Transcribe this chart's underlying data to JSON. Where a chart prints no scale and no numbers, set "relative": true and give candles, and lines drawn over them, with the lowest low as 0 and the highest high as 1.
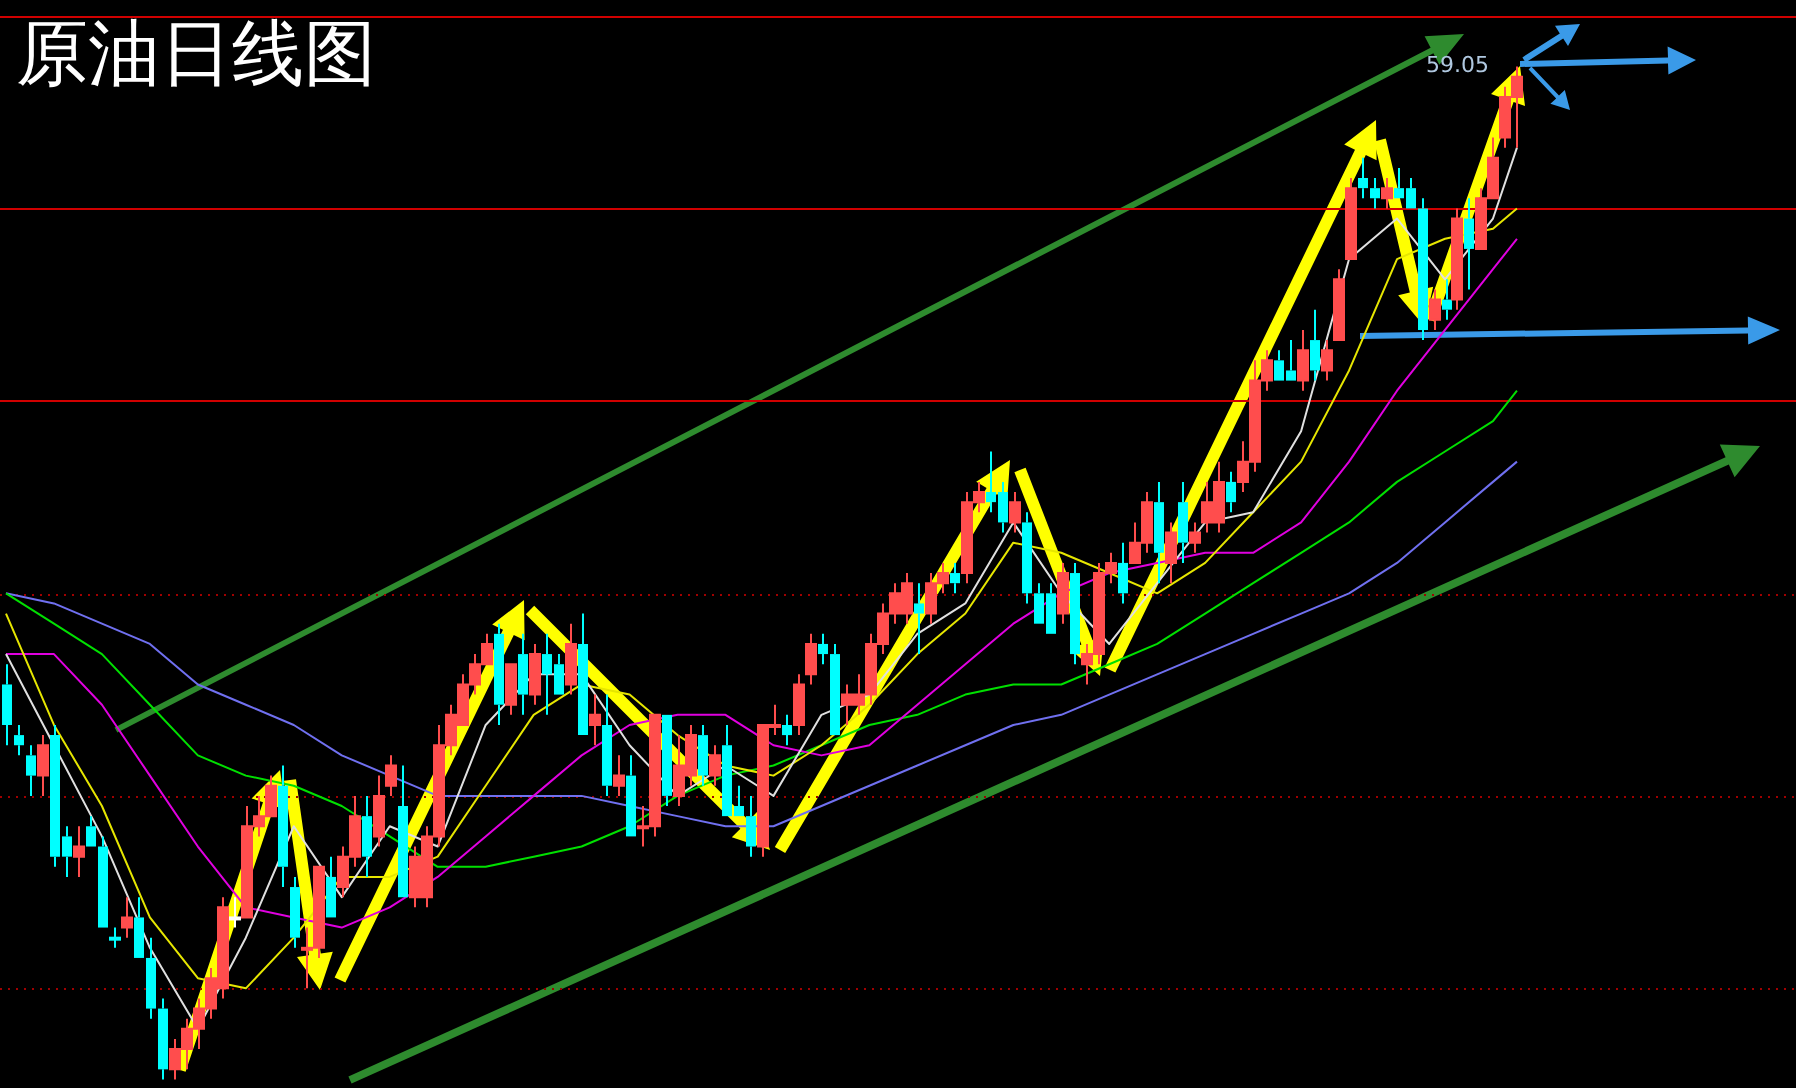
{
  "chart_data": {
    "type": "candlestick",
    "title": "原油日线图",
    "relative": true,
    "tick_labels": false,
    "categories": [
      null,
      null,
      null,
      null,
      null,
      null,
      null,
      null,
      null,
      null,
      null,
      null,
      null,
      null,
      null,
      null,
      null,
      null,
      null,
      null,
      null,
      null,
      null,
      null,
      null,
      null,
      null,
      null,
      null,
      null,
      null,
      null,
      null,
      null,
      null,
      null,
      null,
      null,
      null,
      null,
      null,
      null,
      null,
      null,
      null,
      null,
      null,
      null,
      null,
      null,
      null,
      null,
      null,
      null,
      null,
      null,
      null,
      null,
      null,
      null,
      null,
      null,
      null,
      null,
      null,
      null,
      null,
      null,
      null,
      null,
      null,
      null,
      null,
      null,
      null,
      null,
      null,
      null,
      null,
      null,
      null,
      null,
      null,
      null,
      null,
      null,
      null,
      null,
      null,
      null,
      null,
      null,
      null,
      null,
      null,
      null,
      null,
      null,
      null,
      null,
      null,
      null,
      null,
      null,
      null,
      null,
      null,
      null,
      null,
      null,
      null,
      null,
      null,
      null,
      null,
      null,
      null,
      null,
      null,
      null,
      null,
      null,
      null,
      null,
      null,
      null,
      null
    ],
    "ohlc": [
      [
        0.39,
        0.41,
        0.33,
        0.35
      ],
      [
        0.34,
        0.35,
        0.32,
        0.33
      ],
      [
        0.32,
        0.33,
        0.28,
        0.3
      ],
      [
        0.3,
        0.34,
        0.28,
        0.33
      ],
      [
        0.34,
        0.35,
        0.21,
        0.22
      ],
      [
        0.24,
        0.25,
        0.2,
        0.22
      ],
      [
        0.22,
        0.25,
        0.2,
        0.23
      ],
      [
        0.25,
        0.26,
        0.23,
        0.23
      ],
      [
        0.23,
        0.24,
        0.15,
        0.15
      ],
      [
        0.14,
        0.15,
        0.13,
        0.14
      ],
      [
        0.15,
        0.18,
        0.14,
        0.16
      ],
      [
        0.16,
        0.18,
        0.12,
        0.12
      ],
      [
        0.12,
        0.14,
        0.06,
        0.07
      ],
      [
        0.07,
        0.08,
        0,
        0.01
      ],
      [
        0.01,
        0.04,
        0,
        0.03
      ],
      [
        0.03,
        0.06,
        0.01,
        0.05
      ],
      [
        0.05,
        0.08,
        0.03,
        0.07
      ],
      [
        0.07,
        0.11,
        0.06,
        0.1
      ],
      [
        0.09,
        0.18,
        0.08,
        0.17
      ],
      [
        0.16,
        0.18,
        0.15,
        0.16
      ],
      [
        0.16,
        0.27,
        0.16,
        0.25
      ],
      [
        0.25,
        0.28,
        0.24,
        0.26
      ],
      [
        0.26,
        0.3,
        0.26,
        0.29
      ],
      [
        0.29,
        0.31,
        0.19,
        0.21
      ],
      [
        0.19,
        0.2,
        0.13,
        0.14
      ],
      [
        0.13,
        0.15,
        0.09,
        0.13
      ],
      [
        0.13,
        0.21,
        0.12,
        0.21
      ],
      [
        0.2,
        0.22,
        0.16,
        0.16
      ],
      [
        0.19,
        0.23,
        0.18,
        0.22
      ],
      [
        0.22,
        0.28,
        0.21,
        0.26
      ],
      [
        0.26,
        0.28,
        0.2,
        0.22
      ],
      [
        0.24,
        0.3,
        0.23,
        0.28
      ],
      [
        0.29,
        0.32,
        0.28,
        0.31
      ],
      [
        0.27,
        0.31,
        0.18,
        0.18
      ],
      [
        0.18,
        0.23,
        0.17,
        0.22
      ],
      [
        0.18,
        0.25,
        0.17,
        0.24
      ],
      [
        0.24,
        0.35,
        0.23,
        0.33
      ],
      [
        0.33,
        0.37,
        0.32,
        0.36
      ],
      [
        0.35,
        0.4,
        0.35,
        0.39
      ],
      [
        0.39,
        0.42,
        0.38,
        0.41
      ],
      [
        0.41,
        0.44,
        0.41,
        0.43
      ],
      [
        0.44,
        0.45,
        0.35,
        0.37
      ],
      [
        0.37,
        0.41,
        0.36,
        0.41
      ],
      [
        0.42,
        0.44,
        0.36,
        0.38
      ],
      [
        0.38,
        0.43,
        0.37,
        0.42
      ],
      [
        0.42,
        0.44,
        0.36,
        0.4
      ],
      [
        0.41,
        0.42,
        0.38,
        0.38
      ],
      [
        0.39,
        0.45,
        0.38,
        0.43
      ],
      [
        0.43,
        0.46,
        0.34,
        0.34
      ],
      [
        0.35,
        0.38,
        0.33,
        0.36
      ],
      [
        0.35,
        0.38,
        0.28,
        0.29
      ],
      [
        0.29,
        0.32,
        0.28,
        0.3
      ],
      [
        0.3,
        0.32,
        0.24,
        0.24
      ],
      [
        0.25,
        0.27,
        0.23,
        0.25
      ],
      [
        0.25,
        0.36,
        0.24,
        0.36
      ],
      [
        0.36,
        0.36,
        0.27,
        0.28
      ],
      [
        0.28,
        0.34,
        0.27,
        0.31
      ],
      [
        0.3,
        0.35,
        0.29,
        0.34
      ],
      [
        0.34,
        0.35,
        0.29,
        0.3
      ],
      [
        0.3,
        0.33,
        0.29,
        0.32
      ],
      [
        0.33,
        0.35,
        0.26,
        0.26
      ],
      [
        0.27,
        0.29,
        0.26,
        0.26
      ],
      [
        0.26,
        0.28,
        0.22,
        0.23
      ],
      [
        0.23,
        0.35,
        0.22,
        0.35
      ],
      [
        0.35,
        0.37,
        0.34,
        0.35
      ],
      [
        0.35,
        0.36,
        0.33,
        0.34
      ],
      [
        0.35,
        0.4,
        0.34,
        0.39
      ],
      [
        0.4,
        0.44,
        0.39,
        0.43
      ],
      [
        0.43,
        0.44,
        0.41,
        0.42
      ],
      [
        0.42,
        0.43,
        0.34,
        0.34
      ],
      [
        0.37,
        0.39,
        0.35,
        0.38
      ],
      [
        0.37,
        0.4,
        0.36,
        0.38
      ],
      [
        0.38,
        0.44,
        0.37,
        0.43
      ],
      [
        0.43,
        0.47,
        0.42,
        0.46
      ],
      [
        0.46,
        0.49,
        0.45,
        0.48
      ],
      [
        0.46,
        0.5,
        0.45,
        0.49
      ],
      [
        0.47,
        0.49,
        0.42,
        0.46
      ],
      [
        0.46,
        0.5,
        0.45,
        0.49
      ],
      [
        0.49,
        0.51,
        0.48,
        0.5
      ],
      [
        0.5,
        0.51,
        0.48,
        0.49
      ],
      [
        0.5,
        0.58,
        0.49,
        0.57
      ],
      [
        0.57,
        0.59,
        0.56,
        0.58
      ],
      [
        0.58,
        0.62,
        0.56,
        0.57
      ],
      [
        0.58,
        0.59,
        0.54,
        0.55
      ],
      [
        0.55,
        0.58,
        0.54,
        0.57
      ],
      [
        0.55,
        0.56,
        0.47,
        0.48
      ],
      [
        0.48,
        0.49,
        0.45,
        0.45
      ],
      [
        0.48,
        0.49,
        0.44,
        0.44
      ],
      [
        0.46,
        0.51,
        0.45,
        0.5
      ],
      [
        0.5,
        0.51,
        0.41,
        0.42
      ],
      [
        0.41,
        0.43,
        0.39,
        0.42
      ],
      [
        0.42,
        0.51,
        0.41,
        0.5
      ],
      [
        0.5,
        0.52,
        0.49,
        0.51
      ],
      [
        0.51,
        0.53,
        0.47,
        0.48
      ],
      [
        0.51,
        0.55,
        0.51,
        0.53
      ],
      [
        0.53,
        0.58,
        0.52,
        0.57
      ],
      [
        0.57,
        0.59,
        0.49,
        0.52
      ],
      [
        0.51,
        0.55,
        0.49,
        0.54
      ],
      [
        0.57,
        0.59,
        0.51,
        0.53
      ],
      [
        0.53,
        0.55,
        0.52,
        0.54
      ],
      [
        0.55,
        0.59,
        0.54,
        0.57
      ],
      [
        0.55,
        0.61,
        0.54,
        0.59
      ],
      [
        0.59,
        0.6,
        0.56,
        0.57
      ],
      [
        0.59,
        0.63,
        0.58,
        0.61
      ],
      [
        0.61,
        0.71,
        0.6,
        0.69
      ],
      [
        0.69,
        0.72,
        0.68,
        0.71
      ],
      [
        0.71,
        0.72,
        0.69,
        0.69
      ],
      [
        0.7,
        0.73,
        0.69,
        0.69
      ],
      [
        0.69,
        0.74,
        0.68,
        0.72
      ],
      [
        0.73,
        0.76,
        0.69,
        0.7
      ],
      [
        0.7,
        0.73,
        0.69,
        0.72
      ],
      [
        0.73,
        0.8,
        0.73,
        0.79
      ],
      [
        0.81,
        0.89,
        0.81,
        0.88
      ],
      [
        0.89,
        0.91,
        0.87,
        0.88
      ],
      [
        0.88,
        0.89,
        0.86,
        0.87
      ],
      [
        0.87,
        0.89,
        0.86,
        0.88
      ],
      [
        0.88,
        0.9,
        0.87,
        0.87
      ],
      [
        0.88,
        0.89,
        0.86,
        0.86
      ],
      [
        0.86,
        0.87,
        0.73,
        0.74
      ],
      [
        0.75,
        0.78,
        0.74,
        0.77
      ],
      [
        0.77,
        0.79,
        0.75,
        0.76
      ],
      [
        0.77,
        0.86,
        0.76,
        0.85
      ],
      [
        0.85,
        0.87,
        0.78,
        0.82
      ],
      [
        0.82,
        0.88,
        0.82,
        0.87
      ],
      [
        0.87,
        0.93,
        0.87,
        0.91
      ],
      [
        0.93,
        0.98,
        0.92,
        0.97
      ],
      [
        0.97,
        1,
        0.92,
        0.99
      ]
    ],
    "colors": [
      "#00ffff",
      "#00ffff",
      "#00ffff",
      "#ff4d4d",
      "#00ffff",
      "#00ffff",
      "#ff4d4d",
      "#00ffff",
      "#00ffff",
      "#00ffff",
      "#ff4d4d",
      "#00ffff",
      "#00ffff",
      "#00ffff",
      "#ff4d4d",
      "#ff4d4d",
      "#ff4d4d",
      "#ff4d4d",
      "#ff4d4d",
      "#ffffff",
      "#ff4d4d",
      "#ff4d4d",
      "#ff4d4d",
      "#00ffff",
      "#00ffff",
      "#ff4d4d",
      "#ff4d4d",
      "#00ffff",
      "#ff4d4d",
      "#ff4d4d",
      "#00ffff",
      "#ff4d4d",
      "#ff4d4d",
      "#00ffff",
      "#ff4d4d",
      "#ff4d4d",
      "#ff4d4d",
      "#ff4d4d",
      "#ff4d4d",
      "#ff4d4d",
      "#ff4d4d",
      "#00ffff",
      "#ff4d4d",
      "#00ffff",
      "#ff4d4d",
      "#00ffff",
      "#00ffff",
      "#ff4d4d",
      "#00ffff",
      "#ff4d4d",
      "#00ffff",
      "#ff4d4d",
      "#00ffff",
      "#ff4d4d",
      "#ff4d4d",
      "#00ffff",
      "#ff4d4d",
      "#ff4d4d",
      "#00ffff",
      "#ff4d4d",
      "#00ffff",
      "#00ffff",
      "#00ffff",
      "#ff4d4d",
      "#ff4d4d",
      "#00ffff",
      "#ff4d4d",
      "#ff4d4d",
      "#00ffff",
      "#00ffff",
      "#ff4d4d",
      "#ff4d4d",
      "#ff4d4d",
      "#ff4d4d",
      "#ff4d4d",
      "#ff4d4d",
      "#00ffff",
      "#ff4d4d",
      "#ff4d4d",
      "#00ffff",
      "#ff4d4d",
      "#ff4d4d",
      "#00ffff",
      "#00ffff",
      "#ff4d4d",
      "#00ffff",
      "#00ffff",
      "#00ffff",
      "#ff4d4d",
      "#00ffff",
      "#ff4d4d",
      "#ff4d4d",
      "#ff4d4d",
      "#00ffff",
      "#ff4d4d",
      "#ff4d4d",
      "#00ffff",
      "#ff4d4d",
      "#00ffff",
      "#ff4d4d",
      "#ff4d4d",
      "#ff4d4d",
      "#00ffff",
      "#ff4d4d",
      "#ff4d4d",
      "#ff4d4d",
      "#00ffff",
      "#00ffff",
      "#ff4d4d",
      "#00ffff",
      "#ff4d4d",
      "#ff4d4d",
      "#ff4d4d",
      "#00ffff",
      "#00ffff",
      "#ff4d4d",
      "#00ffff",
      "#00ffff",
      "#00ffff",
      "#ff4d4d",
      "#00ffff",
      "#ff4d4d",
      "#00ffff",
      "#ff4d4d",
      "#ff4d4d",
      "#ff4d4d",
      "#ff4d4d"
    ],
    "series": [
      {
        "type": "line",
        "color": "#e0e0e0",
        "values": [
          0.42,
          null,
          null,
          null,
          0.33,
          null,
          null,
          null,
          0.24,
          null,
          null,
          null,
          0.13,
          null,
          null,
          null,
          0.05,
          null,
          null,
          null,
          0.14,
          null,
          null,
          null,
          0.25,
          null,
          null,
          null,
          0.18,
          null,
          null,
          null,
          0.25,
          null,
          null,
          null,
          0.23,
          null,
          null,
          null,
          0.35,
          null,
          null,
          null,
          0.4,
          null,
          null,
          null,
          0.4,
          null,
          null,
          null,
          0.33,
          null,
          null,
          null,
          0.28,
          null,
          null,
          null,
          0.31,
          null,
          null,
          null,
          0.28,
          null,
          null,
          null,
          0.36,
          null,
          null,
          null,
          0.38,
          null,
          null,
          null,
          0.44,
          null,
          null,
          null,
          0.47,
          null,
          null,
          null,
          0.55,
          null,
          null,
          null,
          0.48,
          null,
          null,
          null,
          0.43,
          null,
          null,
          null,
          0.49,
          null,
          null,
          null,
          0.55,
          null,
          null,
          null,
          0.56,
          null,
          null,
          null,
          0.64,
          null,
          null,
          null,
          0.81,
          null,
          null,
          null,
          0.85,
          null,
          null,
          null,
          0.79,
          null,
          null,
          null,
          0.85,
          null,
          0.92
        ]
      },
      {
        "type": "line",
        "color": "#e6e600",
        "values": [
          0.46,
          null,
          null,
          null,
          0.35,
          null,
          null,
          null,
          0.27,
          null,
          null,
          null,
          0.16,
          null,
          null,
          null,
          0.1,
          null,
          null,
          null,
          0.09,
          null,
          null,
          null,
          0.14,
          null,
          null,
          null,
          0.2,
          null,
          null,
          null,
          0.2,
          null,
          null,
          null,
          0.22,
          null,
          null,
          null,
          0.29,
          null,
          null,
          null,
          0.36,
          null,
          null,
          null,
          0.39,
          null,
          null,
          null,
          0.38,
          null,
          null,
          null,
          0.34,
          null,
          null,
          null,
          0.31,
          null,
          null,
          null,
          0.3,
          null,
          null,
          null,
          0.33,
          null,
          null,
          null,
          0.37,
          null,
          null,
          null,
          0.42,
          null,
          null,
          null,
          0.46,
          null,
          null,
          null,
          0.53,
          null,
          null,
          null,
          0.52,
          null,
          null,
          null,
          0.5,
          null,
          null,
          null,
          0.48,
          null,
          null,
          null,
          0.51,
          null,
          null,
          null,
          0.56,
          null,
          null,
          null,
          0.61,
          null,
          null,
          null,
          0.7,
          null,
          null,
          null,
          0.81,
          null,
          null,
          null,
          0.83,
          null,
          null,
          null,
          0.84,
          null,
          0.86
        ]
      },
      {
        "type": "line",
        "color": "#e000e0",
        "values": [
          0.42,
          null,
          null,
          null,
          0.42,
          null,
          null,
          null,
          0.37,
          null,
          null,
          null,
          0.3,
          null,
          null,
          null,
          0.23,
          null,
          null,
          null,
          0.17,
          null,
          null,
          null,
          0.16,
          null,
          null,
          null,
          0.15,
          null,
          null,
          null,
          0.17,
          null,
          null,
          null,
          0.2,
          null,
          null,
          null,
          0.24,
          null,
          null,
          null,
          0.28,
          null,
          null,
          null,
          0.32,
          null,
          null,
          null,
          0.35,
          null,
          null,
          null,
          0.36,
          null,
          null,
          null,
          0.36,
          null,
          null,
          null,
          0.33,
          null,
          null,
          null,
          0.32,
          null,
          null,
          null,
          0.33,
          null,
          null,
          null,
          0.37,
          null,
          null,
          null,
          0.41,
          null,
          null,
          null,
          0.45,
          null,
          null,
          null,
          0.48,
          null,
          null,
          null,
          0.5,
          null,
          null,
          null,
          0.51,
          null,
          null,
          null,
          0.52,
          null,
          null,
          null,
          0.52,
          null,
          null,
          null,
          0.55,
          null,
          null,
          null,
          0.61,
          null,
          null,
          null,
          0.68,
          null,
          null,
          null,
          0.74,
          null,
          null,
          null,
          0.8,
          null,
          0.83
        ]
      },
      {
        "type": "line",
        "color": "#00e000",
        "values": [
          0.48,
          null,
          null,
          null,
          0.45,
          null,
          null,
          null,
          0.42,
          null,
          null,
          null,
          0.37,
          null,
          null,
          null,
          0.32,
          null,
          null,
          null,
          0.3,
          null,
          null,
          null,
          0.29,
          null,
          null,
          null,
          0.27,
          null,
          null,
          null,
          0.24,
          null,
          null,
          null,
          0.21,
          null,
          null,
          null,
          0.21,
          null,
          null,
          null,
          0.22,
          null,
          null,
          null,
          0.23,
          null,
          null,
          null,
          0.25,
          null,
          null,
          null,
          0.28,
          null,
          null,
          null,
          0.3,
          null,
          null,
          null,
          0.31,
          null,
          null,
          null,
          0.33,
          null,
          null,
          null,
          0.35,
          null,
          null,
          null,
          0.36,
          null,
          null,
          null,
          0.38,
          null,
          null,
          null,
          0.39,
          null,
          null,
          null,
          0.39,
          null,
          null,
          null,
          0.41,
          null,
          null,
          null,
          0.43,
          null,
          null,
          null,
          0.46,
          null,
          null,
          null,
          0.49,
          null,
          null,
          null,
          0.52,
          null,
          null,
          null,
          0.55,
          null,
          null,
          null,
          0.59,
          null,
          null,
          null,
          0.62,
          null,
          null,
          null,
          0.65,
          null,
          0.68
        ]
      },
      {
        "type": "line",
        "color": "#7070f0",
        "values": [
          0.48,
          null,
          null,
          null,
          0.47,
          null,
          null,
          null,
          0.45,
          null,
          null,
          null,
          0.43,
          null,
          null,
          null,
          0.39,
          null,
          null,
          null,
          0.37,
          null,
          null,
          null,
          0.35,
          null,
          null,
          null,
          0.32,
          null,
          null,
          null,
          0.3,
          null,
          null,
          null,
          0.28,
          null,
          null,
          null,
          0.28,
          null,
          null,
          null,
          0.28,
          null,
          null,
          null,
          0.28,
          null,
          null,
          null,
          0.27,
          null,
          null,
          null,
          0.26,
          null,
          null,
          null,
          0.25,
          null,
          null,
          null,
          0.25,
          null,
          null,
          null,
          0.27,
          null,
          null,
          null,
          0.29,
          null,
          null,
          null,
          0.31,
          null,
          null,
          null,
          0.33,
          null,
          null,
          null,
          0.35,
          null,
          null,
          null,
          0.36,
          null,
          null,
          null,
          0.38,
          null,
          null,
          null,
          0.4,
          null,
          null,
          null,
          0.42,
          null,
          null,
          null,
          0.44,
          null,
          null,
          null,
          0.46,
          null,
          null,
          null,
          0.48,
          null,
          null,
          null,
          0.51,
          null,
          null,
          null,
          0.55,
          null,
          null,
          null,
          0.59,
          null,
          0.61
        ]
      }
    ],
    "ref_lines": [
      {
        "axis": "y",
        "value": 1.05,
        "color": "#d00000",
        "line_style": "solid"
      },
      {
        "axis": "y",
        "value": 0.86,
        "color": "#d00000",
        "line_style": "solid"
      },
      {
        "axis": "y",
        "value": 0.67,
        "color": "#d00000",
        "line_style": "solid"
      },
      {
        "axis": "y",
        "value": 0.48,
        "color": "#a00000",
        "line_style": "dotted"
      },
      {
        "axis": "y",
        "value": 0.28,
        "color": "#a00000",
        "line_style": "dotted"
      },
      {
        "axis": "y",
        "value": 0.09,
        "color": "#a00000",
        "line_style": "dotted"
      }
    ],
    "annotations": [
      "59.05"
    ]
  }
}
